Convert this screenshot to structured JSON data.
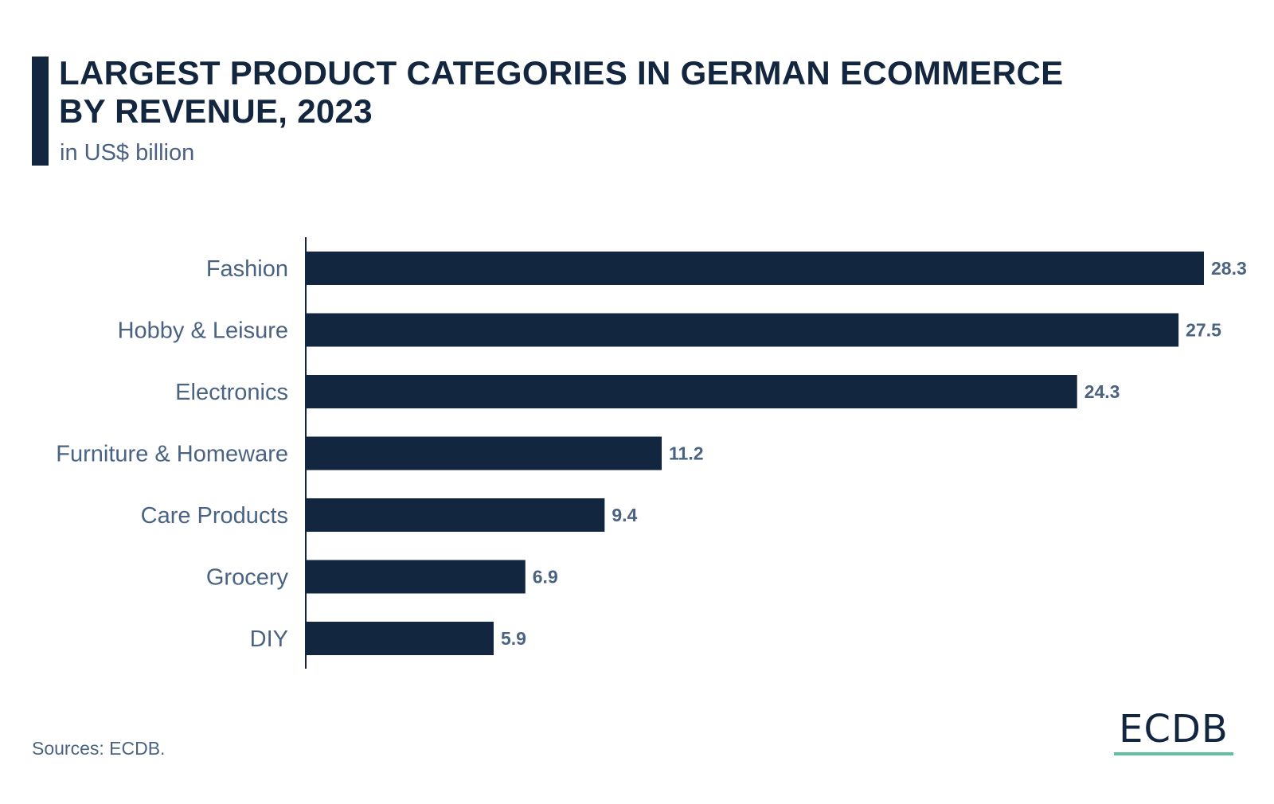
{
  "header": {
    "title_line1": "LARGEST PRODUCT CATEGORIES IN GERMAN ECOMMERCE",
    "title_line2": "BY REVENUE, 2023",
    "subtitle": "in US$ billion"
  },
  "footer": {
    "source": "Sources: ECDB.",
    "brand": "ECDB"
  },
  "colors": {
    "bar": "#13263f",
    "label": "#4a6382",
    "value": "#4a6382",
    "axis": "#13263f",
    "brand_underline": "#5fc1a0"
  },
  "chart_data": {
    "type": "bar",
    "orientation": "horizontal",
    "title": "LARGEST PRODUCT CATEGORIES IN GERMAN ECOMMERCE BY REVENUE, 2023",
    "subtitle": "in US$ billion",
    "categories": [
      "Fashion",
      "Hobby & Leisure",
      "Electronics",
      "Furniture & Homeware",
      "Care Products",
      "Grocery",
      "DIY"
    ],
    "values": [
      28.3,
      27.5,
      24.3,
      11.2,
      9.4,
      6.9,
      5.9
    ],
    "value_labels": [
      "28.3",
      "27.5",
      "24.3",
      "11.2",
      "9.4",
      "6.9",
      "5.9"
    ],
    "xlim": [
      0,
      28.3
    ],
    "grid": false,
    "legend": "none"
  }
}
